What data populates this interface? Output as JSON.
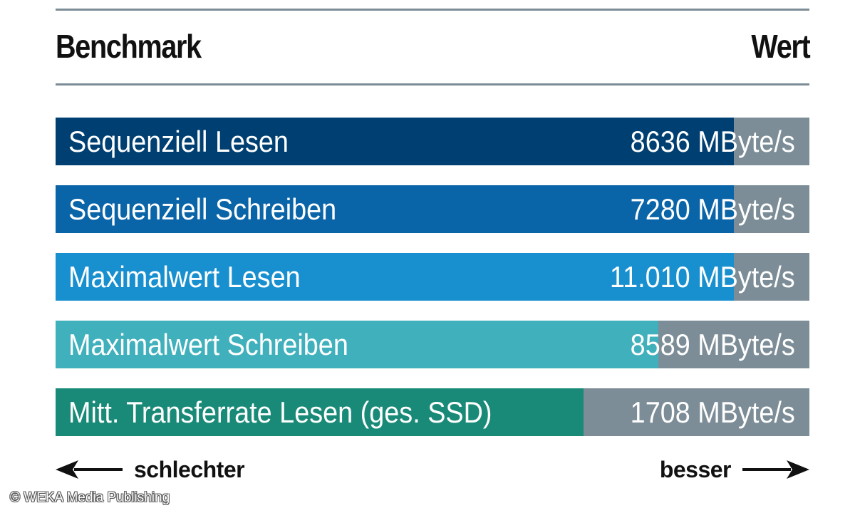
{
  "header": {
    "title": "Benchmark",
    "value_header": "Wert"
  },
  "chart_data": {
    "type": "bar",
    "orientation": "horizontal",
    "categories": [
      "Sequenziell Lesen",
      "Sequenziell Schreiben",
      "Maximalwert Lesen",
      "Maximalwert Schreiben",
      "Mitt. Transferrate Lesen (ges. SSD)"
    ],
    "values": [
      8636,
      7280,
      11010,
      8589,
      1708
    ],
    "value_labels": [
      "8636 MByte/s",
      "7280 MByte/s",
      "11.010 MByte/s",
      "8589 MByte/s",
      "1708 MByte/s"
    ],
    "fill_fraction": [
      0.9,
      0.9,
      0.9,
      0.8,
      0.7
    ],
    "unit": "MByte/s",
    "colors": [
      "#003f71",
      "#0a64a8",
      "#1890cf",
      "#3fb0bc",
      "#1a8a78"
    ],
    "track_color": "#7c8d97",
    "grid": false
  },
  "footer": {
    "worse_label": "schlechter",
    "better_label": "besser"
  },
  "copyright": "© WEKA Media Publishing"
}
